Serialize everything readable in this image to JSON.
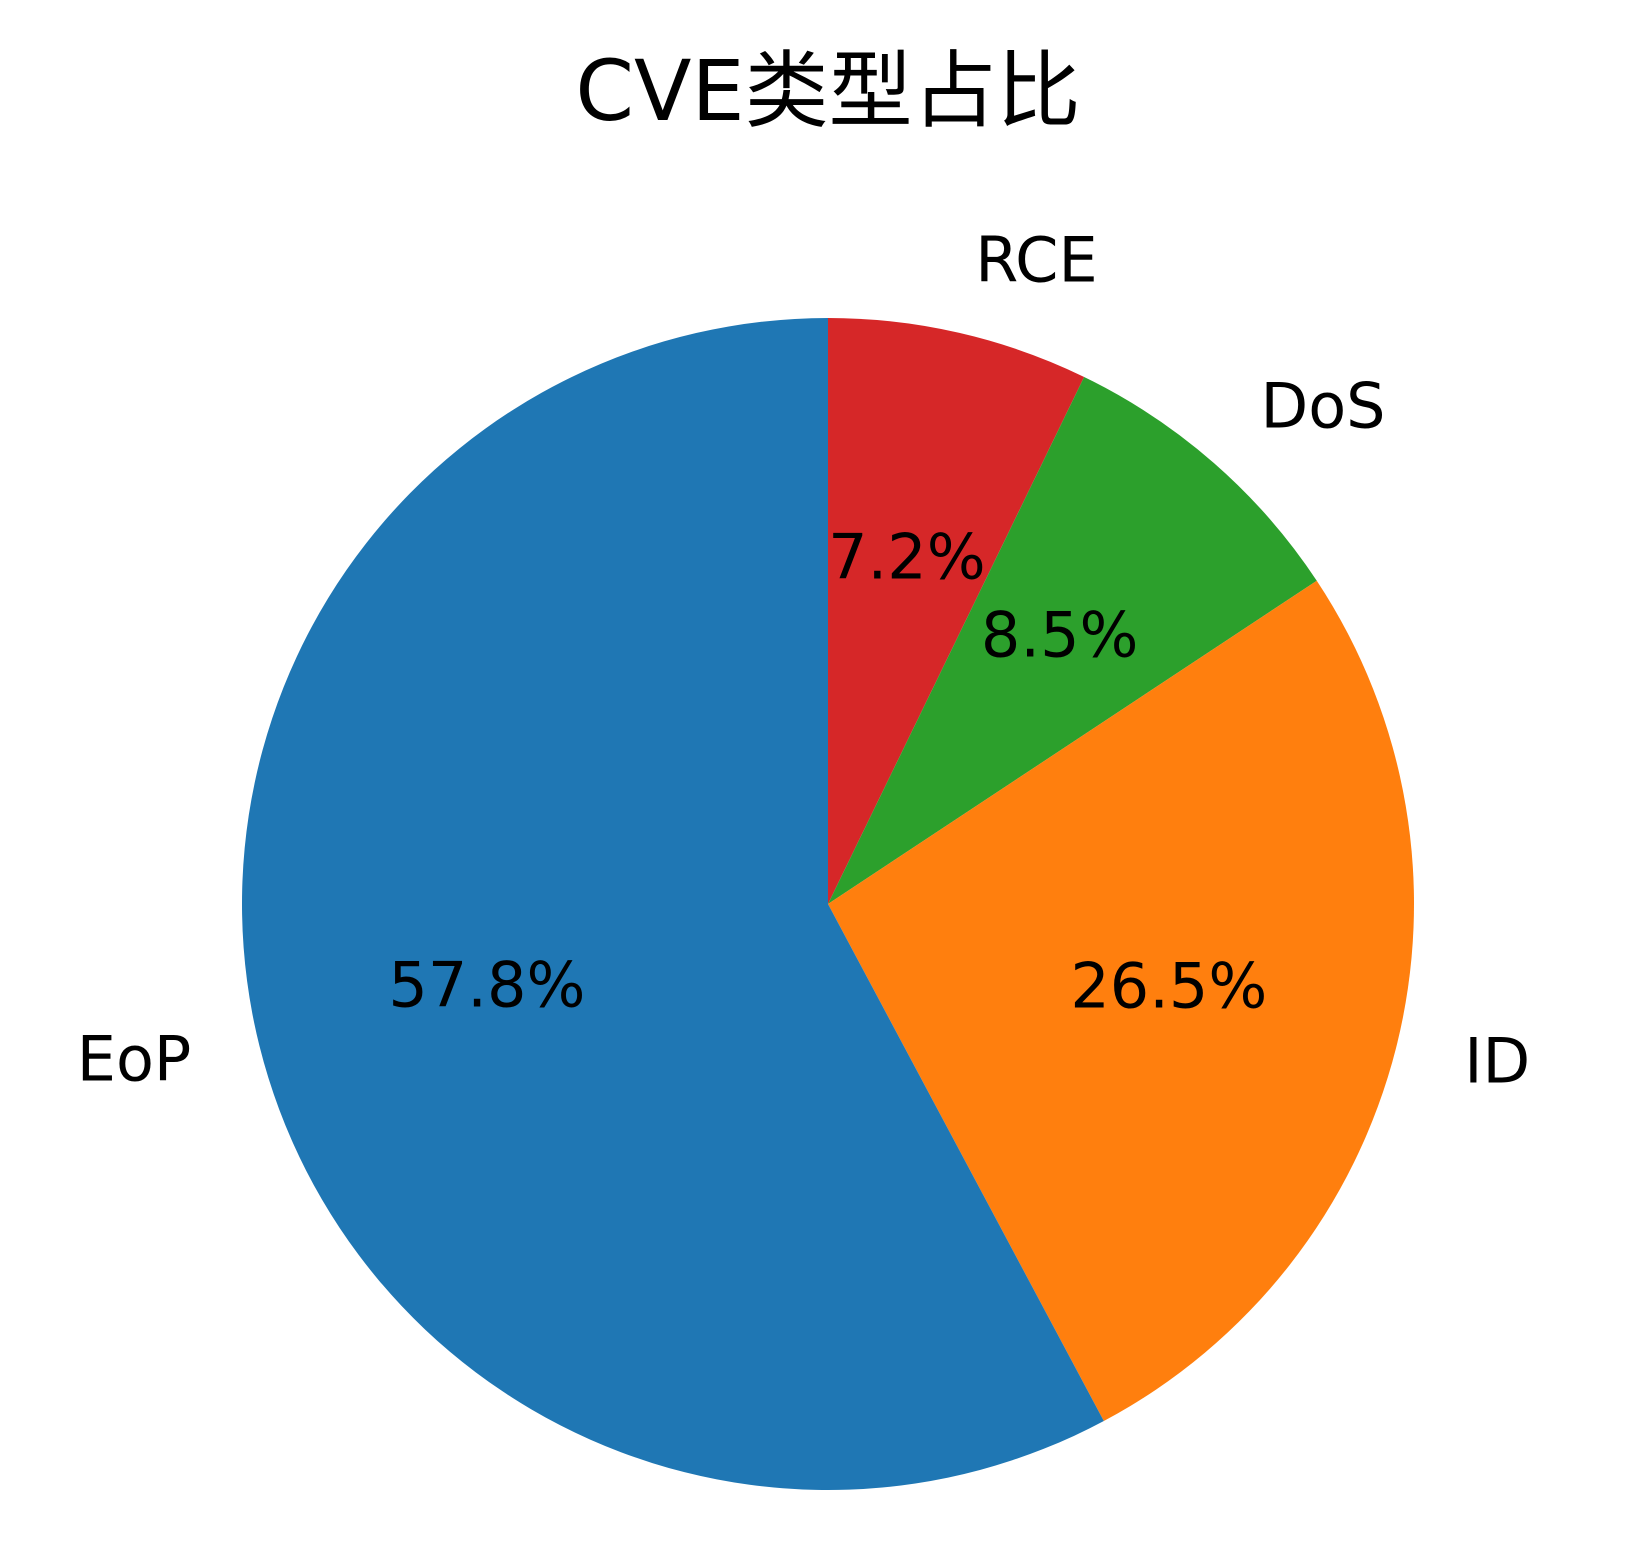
{
  "chart_data": {
    "type": "pie",
    "title": "CVE类型占比",
    "categories": [
      "RCE",
      "DoS",
      "ID",
      "EoP"
    ],
    "values": [
      7.2,
      8.5,
      26.5,
      57.8
    ],
    "value_labels": [
      "7.2%",
      "8.5%",
      "26.5%",
      "57.8%"
    ],
    "colors": [
      "#d62728",
      "#2ca02c",
      "#ff7f0e",
      "#1f77b4"
    ],
    "start_angle": "12 o'clock",
    "direction": "clockwise"
  }
}
